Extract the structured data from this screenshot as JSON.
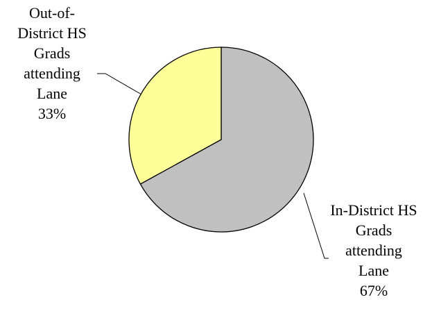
{
  "chart_data": {
    "type": "pie",
    "title": "",
    "slices": [
      {
        "label_lines": [
          "In-District HS",
          "Grads",
          "attending",
          "Lane"
        ],
        "percent_label": "67%",
        "value": 67,
        "color": "#c0c0c0"
      },
      {
        "label_lines": [
          "Out-of-",
          "District HS",
          "Grads",
          "attending",
          "Lane"
        ],
        "percent_label": "33%",
        "value": 33,
        "color": "#ffff99"
      }
    ],
    "start_angle": "12 o'clock",
    "direction": "clockwise",
    "legend": "none"
  }
}
